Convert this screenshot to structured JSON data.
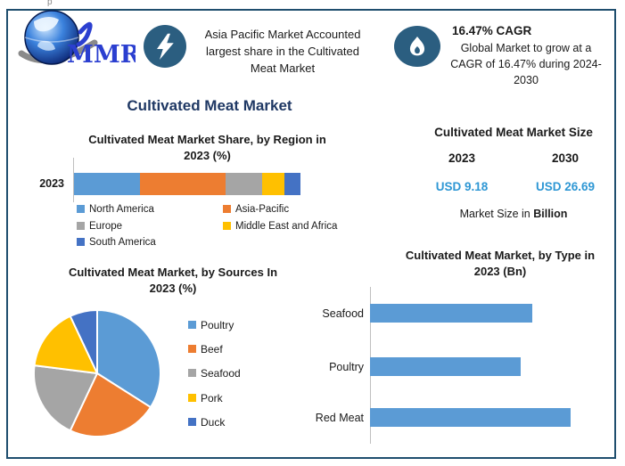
{
  "edge_artifact": "p",
  "colors": {
    "border": "#1F4E6E",
    "icon_circle": "#2B5E80",
    "navy_title": "#1F3864",
    "value_blue": "#2E97D4",
    "axis_gray": "#BFBFBF",
    "palette": [
      "#5B9BD5",
      "#ED7D31",
      "#A5A5A5",
      "#FFC000",
      "#4472C4"
    ]
  },
  "header": {
    "logo_text": "MMR",
    "highlight_asia": {
      "icon": "lightning-icon",
      "text": "Asia Pacific Market Accounted largest share in the Cultivated Meat Market"
    },
    "highlight_cagr": {
      "icon": "flame-icon",
      "title": "16.47% CAGR",
      "body": "Global Market to grow at a\nCAGR of 16.47% during 2024-\n2030"
    }
  },
  "main_title": "Cultivated Meat Market",
  "market_size": {
    "title": "Cultivated Meat Market Size",
    "columns": [
      {
        "year": "2023",
        "value": "USD 9.18"
      },
      {
        "year": "2030",
        "value": "USD 26.69"
      }
    ],
    "caption": {
      "prefix": "Market Size in ",
      "emphasis": "Billion"
    }
  },
  "chart_data": [
    {
      "type": "bar",
      "subtype": "stacked_horizontal",
      "title": "Cultivated Meat Market Share, by Region in\n2023 (%)",
      "categories": [
        "2023"
      ],
      "series": [
        {
          "name": "North America",
          "value": 29,
          "color": "#5B9BD5"
        },
        {
          "name": "Asia-Pacific",
          "value": 38,
          "color": "#ED7D31"
        },
        {
          "name": "Europe",
          "value": 16,
          "color": "#A5A5A5"
        },
        {
          "name": "Middle East and Africa",
          "value": 10,
          "color": "#FFC000"
        },
        {
          "name": "South America",
          "value": 7,
          "color": "#4472C4"
        }
      ],
      "units": "%",
      "legend_position": "bottom",
      "note": "segment percentages estimated from bar lengths (no data labels shown)"
    },
    {
      "type": "pie",
      "title": "Cultivated Meat Market, by Sources In\n2023 (%)",
      "labels": [
        "Poultry",
        "Beef",
        "Seafood",
        "Pork",
        "Duck"
      ],
      "values": [
        34,
        23,
        20,
        16,
        7
      ],
      "colors": [
        "#5B9BD5",
        "#ED7D31",
        "#A5A5A5",
        "#FFC000",
        "#4472C4"
      ],
      "start_angle_deg": 0,
      "direction": "clockwise",
      "legend_position": "right",
      "note": "slice percentages estimated from angles (no data labels shown)"
    },
    {
      "type": "bar",
      "subtype": "horizontal",
      "title": "Cultivated Meat Market, by Type in\n2023 (Bn)",
      "categories": [
        "Seafood",
        "Poultry",
        "Red Meat"
      ],
      "values": [
        0.81,
        0.75,
        1.0
      ],
      "value_scale": "fraction of largest bar (axis unlabeled)",
      "bar_color": "#5B9BD5",
      "note": "bar lengths relative; no tick labels shown"
    }
  ]
}
